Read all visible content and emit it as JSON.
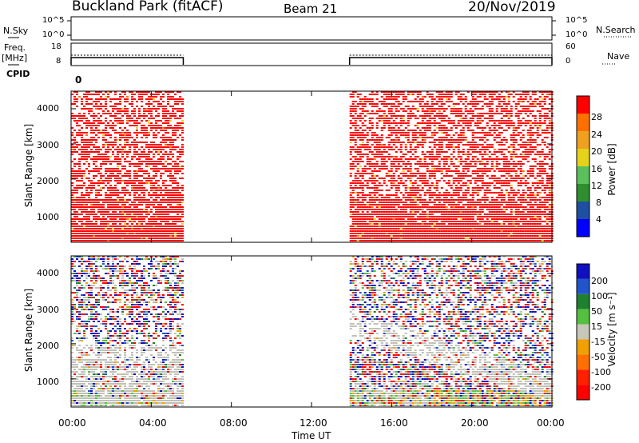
{
  "header": {
    "station": "Buckland Park (fitACF)",
    "beam": "Beam 21",
    "date": "20/Nov/2019"
  },
  "panels": {
    "nsky": {
      "label": "N.Sky",
      "ticks": [
        "10^5",
        "10^0"
      ],
      "right_ticks": [
        "10^5",
        "10^0"
      ],
      "right_label": "N.Search"
    },
    "freq": {
      "label_line1": "Freq.",
      "label_line2": "[MHz]",
      "ticks": [
        "18",
        "8"
      ],
      "right_ticks": [
        "60",
        "0"
      ],
      "right_label": "Nave"
    },
    "cpid": {
      "label": "CPID",
      "value": "0"
    }
  },
  "colors": {
    "power": [
      "#0000ff",
      "#1f4fa0",
      "#2f8f2f",
      "#5bc05b",
      "#e6d21a",
      "#f0a020",
      "#ff7000",
      "#ff0000"
    ],
    "velocity": [
      "#1010c0",
      "#2255cc",
      "#1f8030",
      "#55c040",
      "#c8c8b8",
      "#f0a000",
      "#ff7000",
      "#ff2000",
      "#ff0000"
    ],
    "grey": "#c0c0b8"
  },
  "chart_data": [
    {
      "type": "heatmap",
      "name": "power",
      "ylabel": "Slant Range [km]",
      "yticks": [
        "1000",
        "2000",
        "3000",
        "4000"
      ],
      "ylim": [
        200,
        4500
      ],
      "xlim": [
        0,
        24
      ],
      "data_segments": [
        [
          0,
          5.6
        ],
        [
          13.9,
          24
        ]
      ],
      "colorbar": {
        "label": "Power [dB]",
        "ticks": [
          "4",
          "8",
          "12",
          "16",
          "20",
          "24",
          "28"
        ],
        "range": [
          0,
          32
        ]
      }
    },
    {
      "type": "heatmap",
      "name": "velocity",
      "ylabel": "Slant Range [km]",
      "yticks": [
        "1000",
        "2000",
        "3000",
        "4000"
      ],
      "ylim": [
        200,
        4500
      ],
      "xlim": [
        0,
        24
      ],
      "data_segments": [
        [
          0,
          5.6
        ],
        [
          13.9,
          24
        ]
      ],
      "colorbar": {
        "label": "Velocity [m s⁻¹]",
        "ticks": [
          "200",
          "100",
          "50",
          "15",
          "-15",
          "-50",
          "-100",
          "-200"
        ]
      }
    }
  ],
  "xaxis": {
    "label": "Time UT",
    "ticks": [
      "00:00",
      "04:00",
      "08:00",
      "12:00",
      "16:00",
      "20:00",
      "00:00"
    ]
  }
}
